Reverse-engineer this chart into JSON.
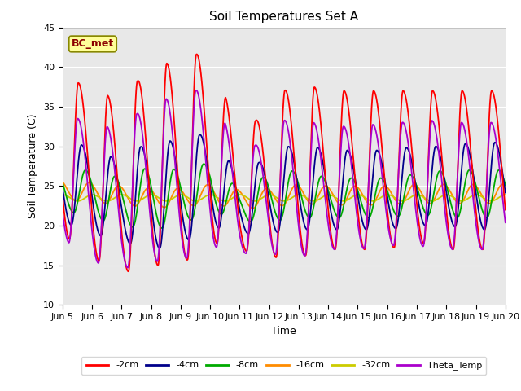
{
  "title": "Soil Temperatures Set A",
  "xlabel": "Time",
  "ylabel": "Soil Temperature (C)",
  "ylim": [
    10,
    45
  ],
  "xlim": [
    0,
    15
  ],
  "plot_bg": "#e8e8e8",
  "annotation_text": "BC_met",
  "annotation_box_color": "#ffff99",
  "annotation_text_color": "#8b0000",
  "annotation_edge_color": "#888800",
  "xtick_labels": [
    "Jun 5",
    "Jun 6",
    "Jun 7",
    "Jun 8",
    "Jun 9",
    "Jun 10",
    "Jun 11",
    "Jun 12",
    "Jun 13",
    "Jun 14",
    "Jun 15",
    "Jun 16",
    "Jun 17",
    "Jun 18",
    "Jun 19",
    "Jun 20"
  ],
  "xtick_positions": [
    0,
    1,
    2,
    3,
    4,
    5,
    6,
    7,
    8,
    9,
    10,
    11,
    12,
    13,
    14,
    15
  ],
  "ytick_positions": [
    10,
    15,
    20,
    25,
    30,
    35,
    40,
    45
  ],
  "colors": {
    "2cm": "#ff0000",
    "4cm": "#00008b",
    "8cm": "#00aa00",
    "16cm": "#ff8c00",
    "32cm": "#cccc00",
    "theta": "#aa00cc"
  },
  "legend_labels": [
    "-2cm",
    "-4cm",
    "-8cm",
    "-16cm",
    "-32cm",
    "Theta_Temp"
  ]
}
